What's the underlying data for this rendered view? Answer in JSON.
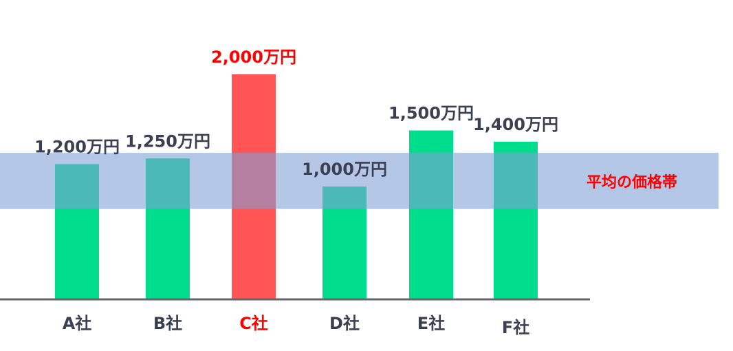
{
  "chart_data": {
    "type": "bar",
    "categories": [
      "A社",
      "B社",
      "C社",
      "D社",
      "E社",
      "F社"
    ],
    "values": [
      1200,
      1250,
      2000,
      1000,
      1500,
      1400
    ],
    "value_labels": [
      "1,200万円",
      "1,250万円",
      "2,000万円",
      "1,000万円",
      "1,500万円",
      "1,400万円"
    ],
    "highlight_index": 2,
    "ylim": [
      0,
      2000
    ],
    "band": {
      "label": "平均の価格帯",
      "range": [
        800,
        1300
      ]
    },
    "grid": false,
    "colors": {
      "bar": "#00dd8c",
      "highlight": "#ff5555",
      "band": "#7f9fd5",
      "text": "#3b3f52",
      "highlight_text": "#ff0000",
      "axis": "#666666"
    }
  }
}
